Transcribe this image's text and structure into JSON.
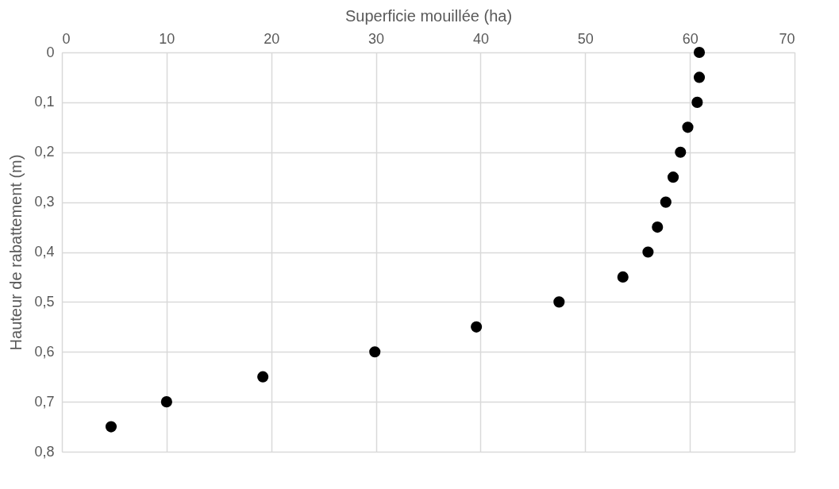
{
  "chart_data": {
    "type": "scatter",
    "xlabel": "Superficie mouillée (ha)",
    "ylabel": "Hauteur de rabattement (m)",
    "x": [
      60.9,
      60.9,
      60.7,
      59.8,
      59.1,
      58.4,
      57.7,
      56.9,
      56.0,
      53.6,
      47.5,
      39.6,
      29.9,
      19.2,
      10.0,
      4.7
    ],
    "series": [
      {
        "color": "#000000",
        "values": [
          0,
          0.05,
          0.1,
          0.15,
          0.2,
          0.25,
          0.3,
          0.35,
          0.4,
          0.45,
          0.5,
          0.55,
          0.6,
          0.65,
          0.7,
          0.75
        ]
      }
    ],
    "xlim": [
      0,
      70
    ],
    "xticks": [
      0,
      10,
      20,
      30,
      40,
      50,
      60,
      70
    ],
    "ylim": [
      0.8,
      0
    ],
    "yticks": [
      0,
      {
        "value": 0.1,
        "label": "0,1"
      },
      {
        "value": 0.2,
        "label": "0,2"
      },
      {
        "value": 0.3,
        "label": "0,3"
      },
      {
        "value": 0.4,
        "label": "0,4"
      },
      {
        "value": 0.5,
        "label": "0,5"
      },
      {
        "value": 0.6,
        "label": "0,6"
      },
      {
        "value": 0.7,
        "label": "0,7"
      },
      {
        "value": 0.8,
        "label": "0,8"
      }
    ],
    "grid": true,
    "marker": "circle"
  }
}
